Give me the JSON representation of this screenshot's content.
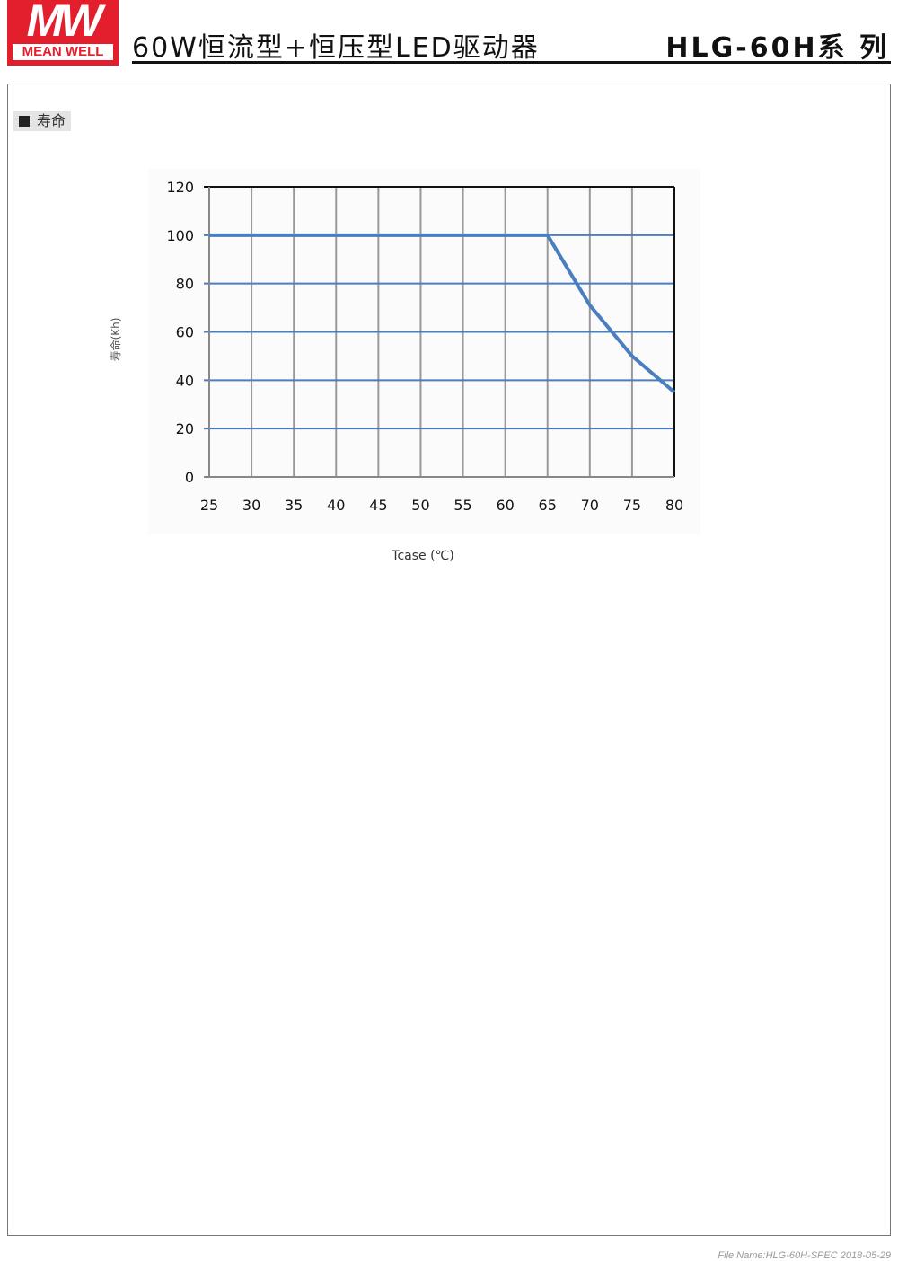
{
  "header": {
    "logo_text": "MW",
    "logo_brand": "MEAN WELL",
    "title": "60W恒流型+恒压型LED驱动器",
    "series": "HLG-60H系 列"
  },
  "section": {
    "label": "寿命"
  },
  "footer": {
    "text": "File Name:HLG-60H-SPEC   2018-05-29"
  },
  "colors": {
    "line": "#4a7ebf",
    "hgrid": "#4a7ebf",
    "vgrid": "#999999",
    "brand": "#e31e2d"
  },
  "chart_data": {
    "type": "line",
    "title": "",
    "xlabel": "Tcase (℃)",
    "ylabel": "寿命(Kh)",
    "xlim": [
      25,
      80
    ],
    "ylim": [
      0,
      120
    ],
    "xticks": [
      25,
      30,
      35,
      40,
      45,
      50,
      55,
      60,
      65,
      70,
      75,
      80
    ],
    "yticks": [
      0,
      20,
      40,
      60,
      80,
      100,
      120
    ],
    "grid": true,
    "series": [
      {
        "x": [
          25,
          65,
          70,
          75,
          80
        ],
        "y": [
          100,
          100,
          71,
          50,
          35
        ]
      }
    ]
  }
}
